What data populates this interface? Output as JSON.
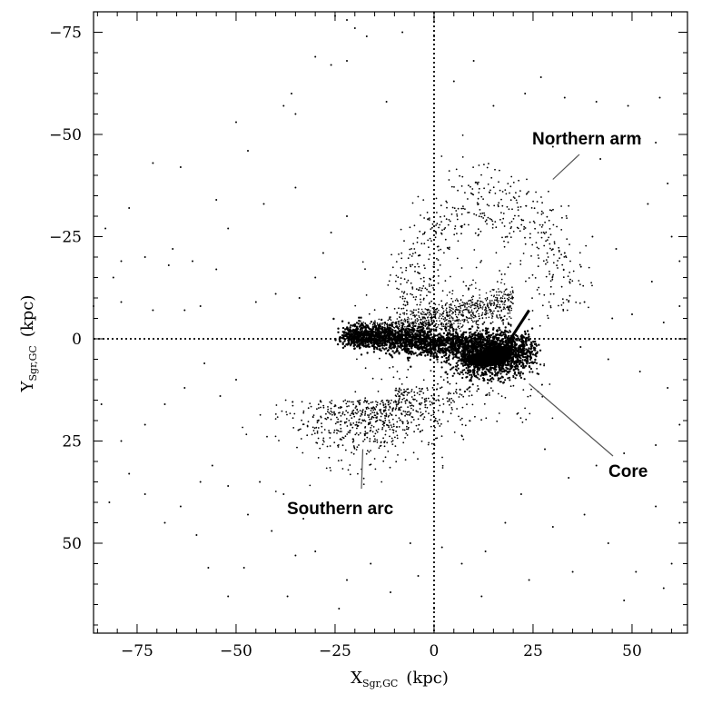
{
  "chart_data": {
    "type": "scatter",
    "xlabel": "X",
    "xlabel_sub": "Sgr,GC",
    "xunit": "(kpc)",
    "ylabel": "Y",
    "ylabel_sub": "Sgr,GC",
    "yunit": "(kpc)",
    "xlim": [
      -86,
      64
    ],
    "ylim": [
      72,
      -80
    ],
    "y_axis_inverted": true,
    "xticks": [
      -75,
      -50,
      -25,
      0,
      25,
      50
    ],
    "yticks": [
      -75,
      -50,
      -25,
      0,
      25,
      50
    ],
    "xtick_labels": [
      "−75",
      "−50",
      "−25",
      "0",
      "25",
      "50"
    ],
    "ytick_labels": [
      "−75",
      "−50",
      "−25",
      "0",
      "25",
      "50"
    ],
    "grid": false,
    "reference_lines": {
      "x": 0,
      "y": 0,
      "style": "dotted"
    },
    "annotations": [
      {
        "text": "Northern arm",
        "point_x": 30,
        "point_y": -39
      },
      {
        "text": "Core",
        "point_x": 24,
        "point_y": 11
      },
      {
        "text": "Southern arc",
        "point_x": -18,
        "point_y": 27
      }
    ],
    "core_blob": {
      "x": 16,
      "y": 4
    },
    "sparse_points": [
      [
        -25,
        -79
      ],
      [
        -22,
        -78
      ],
      [
        -20,
        -76
      ],
      [
        -17,
        -74
      ],
      [
        0,
        -74
      ],
      [
        -22,
        -68
      ],
      [
        -26,
        -67
      ],
      [
        -30,
        -69
      ],
      [
        -36,
        -60
      ],
      [
        -38,
        -57
      ],
      [
        -35,
        -55
      ],
      [
        -50,
        -53
      ],
      [
        -47,
        -46
      ],
      [
        -43,
        -33
      ],
      [
        -64,
        -42
      ],
      [
        -71,
        -43
      ],
      [
        -77,
        -32
      ],
      [
        -83,
        -27
      ],
      [
        -81,
        -15
      ],
      [
        -79,
        -19
      ],
      [
        -73,
        -20
      ],
      [
        -67,
        -18
      ],
      [
        -61,
        -19
      ],
      [
        -55,
        -17
      ],
      [
        -66,
        -22
      ],
      [
        -55,
        -34
      ],
      [
        -52,
        -27
      ],
      [
        -59,
        -8
      ],
      [
        -63,
        -7
      ],
      [
        -71,
        -7
      ],
      [
        -79,
        -9
      ],
      [
        -86,
        -8
      ],
      [
        -45,
        -9
      ],
      [
        -40,
        -11
      ],
      [
        -34,
        -10
      ],
      [
        -30,
        -15
      ],
      [
        -28,
        -21
      ],
      [
        -26,
        -26
      ],
      [
        -22,
        -30
      ],
      [
        -35,
        -37
      ],
      [
        10,
        -68
      ],
      [
        23,
        -60
      ],
      [
        33,
        -59
      ],
      [
        41,
        -58
      ],
      [
        49,
        -57
      ],
      [
        57,
        -59
      ],
      [
        52,
        -49
      ],
      [
        56,
        -48
      ],
      [
        59,
        -38
      ],
      [
        54,
        -33
      ],
      [
        60,
        -25
      ],
      [
        62,
        -19
      ],
      [
        55,
        -14
      ],
      [
        50,
        -6
      ],
      [
        45,
        -5
      ],
      [
        38,
        -9
      ],
      [
        33,
        -21
      ],
      [
        40,
        -25
      ],
      [
        46,
        -22
      ],
      [
        27,
        -64
      ],
      [
        -8,
        -75
      ],
      [
        -12,
        -58
      ],
      [
        5,
        -63
      ],
      [
        15,
        -57
      ],
      [
        30,
        -47
      ],
      [
        42,
        -44
      ],
      [
        62,
        -8
      ],
      [
        58,
        -4
      ],
      [
        37,
        2
      ],
      [
        44,
        5
      ],
      [
        52,
        8
      ],
      [
        59,
        12
      ],
      [
        62,
        21
      ],
      [
        56,
        26
      ],
      [
        48,
        28
      ],
      [
        41,
        31
      ],
      [
        34,
        34
      ],
      [
        28,
        27
      ],
      [
        22,
        38
      ],
      [
        18,
        45
      ],
      [
        13,
        52
      ],
      [
        7,
        55
      ],
      [
        2,
        51
      ],
      [
        -6,
        50
      ],
      [
        -11,
        62
      ],
      [
        -16,
        55
      ],
      [
        -22,
        59
      ],
      [
        -30,
        52
      ],
      [
        -35,
        53
      ],
      [
        -41,
        47
      ],
      [
        -47,
        43
      ],
      [
        -52,
        36
      ],
      [
        -56,
        31
      ],
      [
        -59,
        35
      ],
      [
        -64,
        41
      ],
      [
        -68,
        45
      ],
      [
        -73,
        38
      ],
      [
        -77,
        33
      ],
      [
        -82,
        40
      ],
      [
        -57,
        56
      ],
      [
        -52,
        63
      ],
      [
        -48,
        56
      ],
      [
        -60,
        48
      ],
      [
        -44,
        35
      ],
      [
        -38,
        38
      ],
      [
        -33,
        44
      ],
      [
        -28,
        41
      ],
      [
        -50,
        10
      ],
      [
        -54,
        14
      ],
      [
        -58,
        6
      ],
      [
        -63,
        12
      ],
      [
        -68,
        16
      ],
      [
        -73,
        21
      ],
      [
        -79,
        25
      ],
      [
        -84,
        16
      ],
      [
        30,
        46
      ],
      [
        38,
        43
      ],
      [
        44,
        50
      ],
      [
        51,
        57
      ],
      [
        58,
        61
      ],
      [
        62,
        45
      ],
      [
        56,
        41
      ],
      [
        24,
        59
      ],
      [
        12,
        63
      ],
      [
        0,
        66
      ],
      [
        -4,
        58
      ],
      [
        35,
        57
      ],
      [
        -37,
        63
      ],
      [
        -24,
        66
      ],
      [
        48,
        64
      ],
      [
        60,
        55
      ]
    ]
  }
}
